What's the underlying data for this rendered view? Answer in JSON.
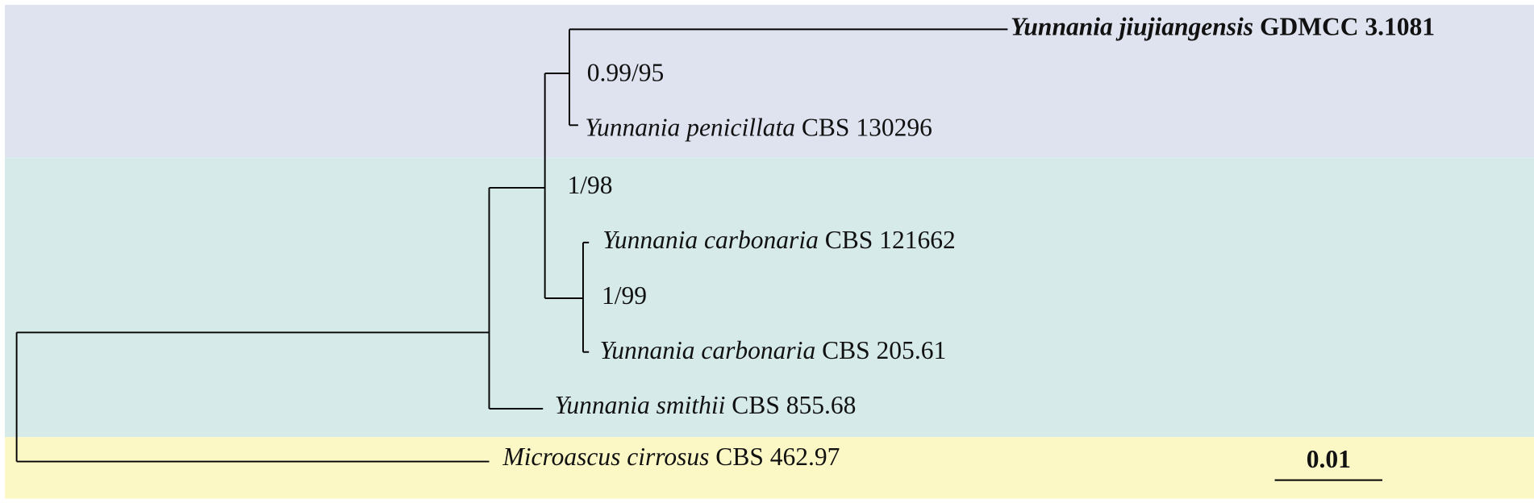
{
  "taxa": [
    {
      "species": "Yunnania jiujiangensis",
      "strain": "GDMCC 3.1081"
    },
    {
      "species": "Yunnania penicillata",
      "strain": "CBS 130296"
    },
    {
      "species": "Yunnania carbonaria",
      "strain": "CBS 121662"
    },
    {
      "species": "Yunnania carbonaria",
      "strain": "CBS 205.61"
    },
    {
      "species": "Yunnania smithii",
      "strain": "CBS 855.68"
    },
    {
      "species": "Microascus cirrosus",
      "strain": "CBS 462.97"
    }
  ],
  "support": [
    "0.99/95",
    "1/98",
    "1/99"
  ],
  "scale_bar": "0.01"
}
